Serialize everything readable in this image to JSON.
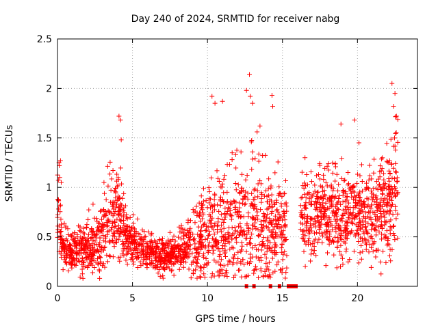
{
  "chart_data": {
    "type": "scatter",
    "title": "Day 240 of 2024, SRMTID for receiver nabg",
    "xlabel": "GPS time / hours",
    "ylabel": "SRMTID / TECUs",
    "xlim": [
      0,
      24
    ],
    "ylim": [
      0,
      2.5
    ],
    "x_ticks": [
      0,
      5,
      10,
      15,
      20
    ],
    "x_tick_labels": [
      "0",
      "5",
      "10",
      "15",
      "20"
    ],
    "y_ticks": [
      0,
      0.5,
      1,
      1.5,
      2,
      2.5
    ],
    "y_tick_labels": [
      "0",
      "0.5",
      "1",
      "1.5",
      "2",
      "2.5"
    ],
    "grid": true,
    "marker": "+",
    "color": "#ff0000",
    "seed": 240,
    "series": [
      {
        "name": "SRMTID",
        "x": [
          0.1,
          0.12,
          0.15,
          0.2,
          0.25,
          4.1,
          4.2,
          4.25,
          10.3,
          10.5,
          11,
          12.6,
          12.8,
          12.85,
          13.0,
          13.5,
          14.3,
          14.35,
          16.5,
          18.9,
          19.8,
          20.1,
          22.3,
          22.4,
          22.5,
          22.6
        ],
        "y": [
          1.25,
          1.22,
          1.1,
          1.27,
          1.05,
          1.72,
          1.68,
          1.48,
          1.92,
          1.85,
          1.87,
          1.98,
          2.14,
          1.92,
          1.85,
          1.62,
          1.93,
          1.82,
          1.3,
          1.64,
          1.68,
          1.45,
          2.05,
          1.82,
          1.95,
          1.72
        ]
      }
    ],
    "density_profile": {
      "hours": [
        0,
        0.3,
        1,
        2,
        3,
        3.5,
        4,
        4.5,
        5,
        6,
        7,
        8,
        9,
        10,
        11,
        12,
        13,
        14,
        15,
        15.5,
        16,
        17,
        18,
        19,
        20,
        21,
        22,
        22.7
      ],
      "median": [
        0.9,
        0.4,
        0.35,
        0.4,
        0.5,
        0.7,
        0.75,
        0.5,
        0.45,
        0.35,
        0.3,
        0.33,
        0.4,
        0.5,
        0.55,
        0.6,
        0.65,
        0.6,
        0.55,
        0.5,
        0.65,
        0.7,
        0.75,
        0.7,
        0.75,
        0.7,
        0.8,
        1.1
      ],
      "spread": [
        0.35,
        0.12,
        0.15,
        0.2,
        0.25,
        0.35,
        0.4,
        0.2,
        0.15,
        0.12,
        0.12,
        0.13,
        0.25,
        0.4,
        0.45,
        0.45,
        0.5,
        0.45,
        0.35,
        0.3,
        0.3,
        0.3,
        0.3,
        0.3,
        0.3,
        0.3,
        0.35,
        0.45
      ],
      "count": 2600
    },
    "flags": {
      "y": 0,
      "x": [
        12.6,
        13.1,
        14.2,
        14.8,
        15.4,
        15.6,
        15.75,
        15.9
      ]
    }
  }
}
